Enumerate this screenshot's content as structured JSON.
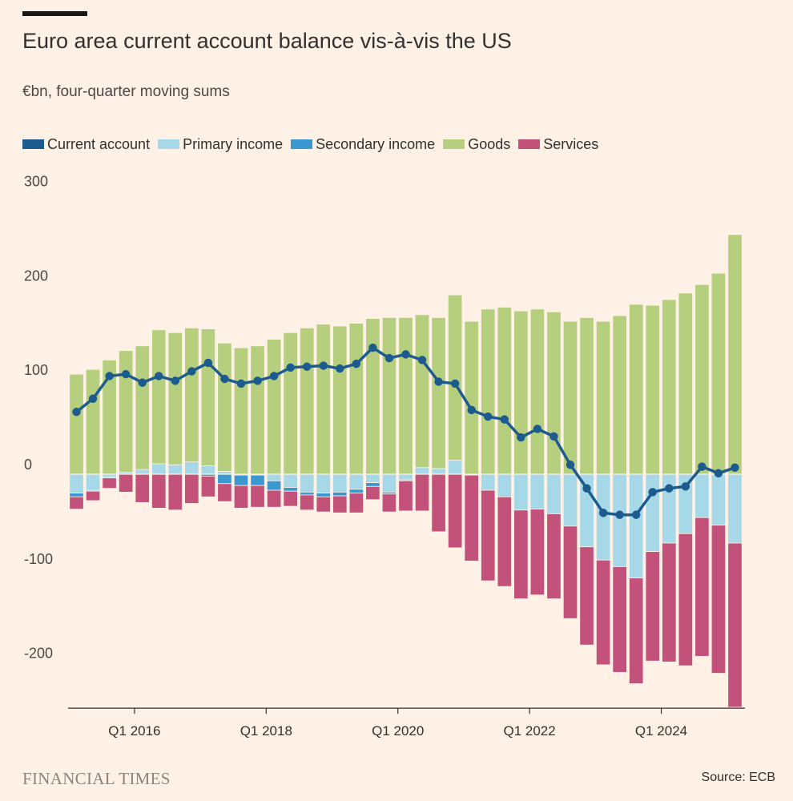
{
  "header": {
    "title": "Euro area current account balance vis-à-vis the US",
    "subtitle": "€bn, four-quarter moving sums"
  },
  "legend": [
    {
      "key": "current",
      "label": "Current account",
      "color": "#1d5b8f"
    },
    {
      "key": "primary",
      "label": "Primary income",
      "color": "#a6d8e8"
    },
    {
      "key": "secondary",
      "label": "Secondary income",
      "color": "#3a98d1"
    },
    {
      "key": "goods",
      "label": "Goods",
      "color": "#b5cf7e"
    },
    {
      "key": "services",
      "label": "Services",
      "color": "#c3527a"
    }
  ],
  "footer": {
    "brand": "FINANCIAL TIMES",
    "source": "Source: ECB"
  },
  "chart_data": {
    "type": "bar",
    "title": "Euro area current account balance vis-à-vis the US",
    "subtitle": "€bn, four-quarter moving sums",
    "xlabel": "",
    "ylabel": "€bn",
    "ylim": [
      -250,
      300
    ],
    "yticks": [
      300,
      200,
      100,
      0,
      -100,
      -200
    ],
    "ytick_labels": [
      "300",
      "200",
      "100",
      "0",
      "-100",
      "-200"
    ],
    "xtick_labels": [
      {
        "label": "Q1 2016",
        "index": 4
      },
      {
        "label": "Q1 2018",
        "index": 12
      },
      {
        "label": "Q1 2020",
        "index": 20
      },
      {
        "label": "Q1 2022",
        "index": 28
      },
      {
        "label": "Q1 2024",
        "index": 36
      }
    ],
    "stacking": "diverging",
    "categories": [
      "Q1 2015",
      "Q2 2015",
      "Q3 2015",
      "Q4 2015",
      "Q1 2016",
      "Q2 2016",
      "Q3 2016",
      "Q4 2016",
      "Q1 2017",
      "Q2 2017",
      "Q3 2017",
      "Q4 2017",
      "Q1 2018",
      "Q2 2018",
      "Q3 2018",
      "Q4 2018",
      "Q1 2019",
      "Q2 2019",
      "Q3 2019",
      "Q4 2019",
      "Q1 2020",
      "Q2 2020",
      "Q3 2020",
      "Q4 2020",
      "Q1 2021",
      "Q2 2021",
      "Q3 2021",
      "Q4 2021",
      "Q1 2022",
      "Q2 2022",
      "Q3 2022",
      "Q4 2022",
      "Q1 2023",
      "Q2 2023",
      "Q3 2023",
      "Q4 2023",
      "Q1 2024",
      "Q2 2024",
      "Q3 2024",
      "Q4 2024",
      "Q1 2025"
    ],
    "series": [
      {
        "name": "Goods",
        "key": "goods",
        "kind": "bar",
        "values": [
          106,
          111,
          121,
          129,
          131,
          142,
          140,
          142,
          145,
          136,
          134,
          136,
          143,
          150,
          155,
          159,
          157,
          160,
          165,
          166,
          166,
          162,
          160,
          175,
          162,
          175,
          177,
          173,
          175,
          172,
          162,
          166,
          162,
          168,
          180,
          179,
          185,
          192,
          201,
          213,
          254
        ]
      },
      {
        "name": "Primary income",
        "key": "primary",
        "kind": "bar",
        "values": [
          -20,
          -17,
          -3,
          2,
          5,
          11,
          10,
          13,
          9,
          3,
          -1,
          -1,
          -7,
          -14,
          -19,
          -20,
          -19,
          -16,
          -9,
          -19,
          -6,
          7,
          6,
          15,
          -1,
          -17,
          -24,
          -38,
          -37,
          -42,
          -55,
          -77,
          -91,
          -98,
          -110,
          -82,
          -73,
          -63,
          -46,
          -54,
          -73
        ]
      },
      {
        "name": "Secondary income",
        "key": "secondary",
        "kind": "bar",
        "values": [
          -4,
          -1,
          -1,
          0,
          0,
          0,
          0,
          0,
          -2,
          -10,
          -11,
          -11,
          -10,
          -4,
          -3,
          -4,
          -4,
          -4,
          -4,
          -2,
          -1,
          0,
          0,
          0,
          0,
          0,
          0,
          0,
          0,
          0,
          0,
          0,
          0,
          0,
          0,
          0,
          0,
          0,
          0,
          0,
          0
        ]
      },
      {
        "name": "Services",
        "key": "services",
        "kind": "bar",
        "values": [
          -13,
          -10,
          -11,
          -19,
          -30,
          -36,
          -38,
          -31,
          -22,
          -19,
          -24,
          -23,
          -18,
          -16,
          -16,
          -16,
          -18,
          -21,
          -14,
          -19,
          -32,
          -39,
          -61,
          -78,
          -91,
          -96,
          -95,
          -94,
          -91,
          -90,
          -98,
          -104,
          -111,
          -112,
          -112,
          -116,
          -126,
          -140,
          -147,
          -157,
          -174
        ]
      },
      {
        "name": "Current account",
        "key": "current",
        "kind": "line",
        "values": [
          66,
          80,
          104,
          106,
          97,
          104,
          99,
          109,
          118,
          101,
          96,
          99,
          104,
          113,
          114,
          115,
          112,
          117,
          134,
          123,
          127,
          121,
          98,
          96,
          68,
          61,
          58,
          39,
          48,
          40,
          10,
          -15,
          -41,
          -43,
          -43,
          -19,
          -15,
          -13,
          8,
          1,
          7
        ]
      }
    ]
  }
}
